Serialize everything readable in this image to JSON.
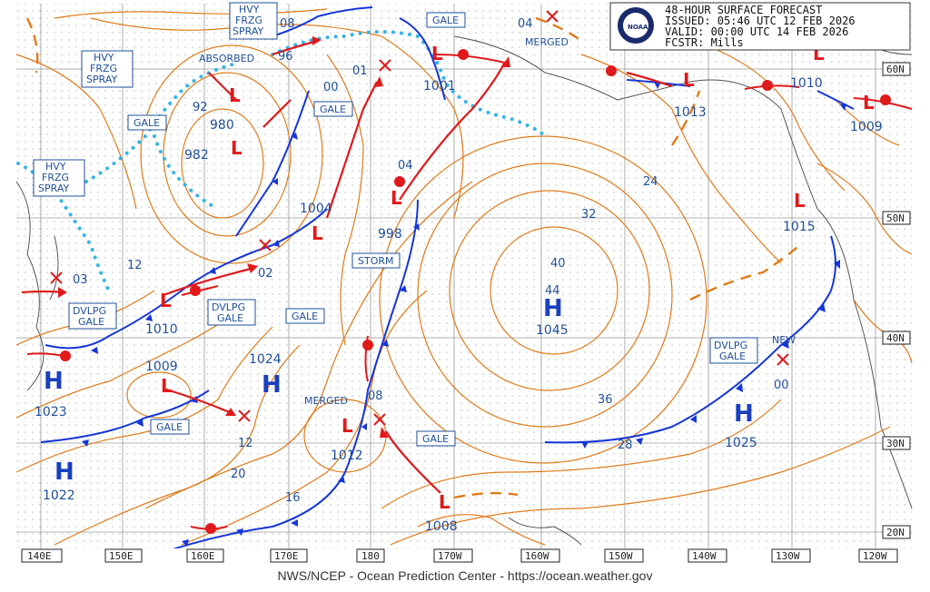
{
  "header": {
    "line1": "48-HOUR SURFACE FORECAST",
    "line2": "ISSUED: 05:46 UTC 12 FEB 2026",
    "line3": "VALID:  00:00 UTC 14 FEB 2026",
    "line4": "FCSTR:  Mills"
  },
  "logo": "NOAA",
  "footer": "NWS/NCEP - Ocean Prediction Center - https://ocean.weather.gov",
  "lon_labels": [
    "140E",
    "150E",
    "160E",
    "170E",
    "180",
    "170W",
    "160W",
    "150W",
    "140W",
    "130W",
    "120W"
  ],
  "lat_labels": [
    "60N",
    "50N",
    "40N",
    "30N",
    "20N"
  ],
  "highs": [
    {
      "id": "h1045",
      "letter": "H",
      "value": "1045"
    },
    {
      "id": "h1024",
      "letter": "H",
      "value": "1024"
    },
    {
      "id": "h1023",
      "letter": "H",
      "value": "1023"
    },
    {
      "id": "h1022",
      "letter": "H",
      "value": "1022"
    },
    {
      "id": "h1025",
      "letter": "H",
      "value": "1025"
    }
  ],
  "lows": [
    {
      "id": "l980",
      "value": "980"
    },
    {
      "id": "l982",
      "value": "982"
    },
    {
      "id": "l1004",
      "value": "1004"
    },
    {
      "id": "l998",
      "value": "998"
    },
    {
      "id": "l1001",
      "value": "1001"
    },
    {
      "id": "l1010w",
      "value": "1010"
    },
    {
      "id": "l1009",
      "value": "1009"
    },
    {
      "id": "l1012",
      "value": "1012"
    },
    {
      "id": "l1008",
      "value": "1008"
    },
    {
      "id": "l1013",
      "value": "1013"
    },
    {
      "id": "l1010e",
      "value": "1010"
    },
    {
      "id": "l1009e",
      "value": "1009"
    },
    {
      "id": "l1015",
      "value": "1015"
    }
  ],
  "warnings": {
    "hvy1": [
      "HVY",
      "FRZG",
      "SPRAY"
    ],
    "hvy2": [
      "HVY",
      "FRZG",
      "SPRAY"
    ],
    "hvy3": [
      "HVY",
      "FRZG",
      "SPRAY"
    ],
    "gale": "GALE",
    "storm": "STORM",
    "dvlpg": [
      "DVLPG",
      "GALE"
    ]
  },
  "notes": {
    "absorbed": "ABSORBED",
    "merged": "MERGED",
    "new": "NEW"
  },
  "small_labels": {
    "n96": "96",
    "n01": "01",
    "n04a": "04",
    "n00a": "00",
    "n08a": "08",
    "n02": "02",
    "n03": "03",
    "n12": "12",
    "n08b": "08",
    "n00b": "00",
    "n04b": "04",
    "n92": "92",
    "n12b": "12",
    "n16": "16",
    "n20": "20",
    "n24": "24",
    "n28": "28",
    "n32": "32",
    "n36": "36",
    "n40": "40",
    "n44": "44"
  },
  "colors": {
    "isobar": "#e07b1a",
    "front_cold": "#1536d8",
    "front_warm": "#e0191b",
    "ice": "#36b4e6",
    "text": "#1f4f9a"
  }
}
